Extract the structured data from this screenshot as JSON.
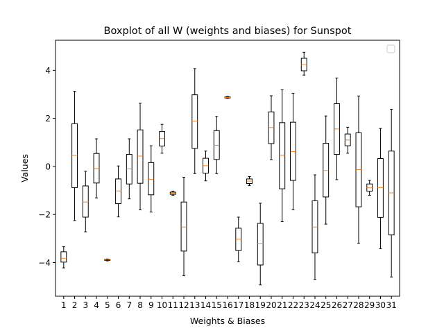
{
  "chart_data": {
    "type": "box",
    "title": "Boxplot of all W (weights and biases) for Sunspot",
    "xlabel": "Weights & Biases",
    "ylabel": "Values",
    "ylim": [
      -5.4,
      5.25
    ],
    "yticks": [
      -4,
      -2,
      0,
      2,
      4
    ],
    "legend": "top-right, empty",
    "grid": false,
    "colors": {
      "box": "#000000",
      "median": "#ff7f0e",
      "background": "#ffffff"
    },
    "categories": [
      "1",
      "2",
      "3",
      "4",
      "5",
      "6",
      "7",
      "8",
      "9",
      "10",
      "11",
      "12",
      "13",
      "14",
      "15",
      "16",
      "17",
      "18",
      "19",
      "20",
      "21",
      "22",
      "23",
      "24",
      "25",
      "26",
      "27",
      "28",
      "29",
      "30",
      "31"
    ],
    "boxes": [
      {
        "whislo": -4.22,
        "q1": -3.98,
        "med": -3.82,
        "q3": -3.55,
        "whishi": -3.34
      },
      {
        "whislo": -2.25,
        "q1": -0.88,
        "med": 0.46,
        "q3": 1.78,
        "whishi": 3.13
      },
      {
        "whislo": -2.72,
        "q1": -2.11,
        "med": -1.48,
        "q3": -0.81,
        "whishi": -0.2
      },
      {
        "whislo": -1.31,
        "q1": -0.69,
        "med": -0.09,
        "q3": 0.54,
        "whishi": 1.15
      },
      {
        "whislo": -3.93,
        "q1": -3.91,
        "med": -3.89,
        "q3": -3.87,
        "whishi": -3.85
      },
      {
        "whislo": -2.1,
        "q1": -1.55,
        "med": -1.02,
        "q3": -0.52,
        "whishi": 0.02
      },
      {
        "whislo": -1.35,
        "q1": -0.73,
        "med": -0.1,
        "q3": 0.5,
        "whishi": 1.15
      },
      {
        "whislo": -1.8,
        "q1": -0.7,
        "med": 0.43,
        "q3": 1.52,
        "whishi": 2.63
      },
      {
        "whislo": -1.9,
        "q1": -1.18,
        "med": -0.54,
        "q3": 0.16,
        "whishi": 0.86
      },
      {
        "whislo": 0.55,
        "q1": 0.85,
        "med": 1.16,
        "q3": 1.45,
        "whishi": 1.75
      },
      {
        "whislo": -1.2,
        "q1": -1.16,
        "med": -1.12,
        "q3": -1.07,
        "whishi": -1.03
      },
      {
        "whislo": -4.55,
        "q1": -3.52,
        "med": -2.52,
        "q3": -1.48,
        "whishi": -0.45
      },
      {
        "whislo": -0.3,
        "q1": 0.75,
        "med": 1.88,
        "q3": 2.98,
        "whishi": 4.07
      },
      {
        "whislo": -0.6,
        "q1": -0.28,
        "med": 0.03,
        "q3": 0.34,
        "whishi": 0.64
      },
      {
        "whislo": -0.3,
        "q1": 0.29,
        "med": 0.88,
        "q3": 1.49,
        "whishi": 2.08
      },
      {
        "whislo": 2.83,
        "q1": 2.85,
        "med": 2.87,
        "q3": 2.89,
        "whishi": 2.91
      },
      {
        "whislo": -3.97,
        "q1": -3.5,
        "med": -3.03,
        "q3": -2.57,
        "whishi": -2.11
      },
      {
        "whislo": -0.8,
        "q1": -0.71,
        "med": -0.61,
        "q3": -0.52,
        "whishi": -0.42
      },
      {
        "whislo": -4.93,
        "q1": -4.1,
        "med": -3.22,
        "q3": -2.37,
        "whishi": -1.53
      },
      {
        "whislo": 0.28,
        "q1": 0.95,
        "med": 1.62,
        "q3": 2.27,
        "whishi": 2.94
      },
      {
        "whislo": -2.3,
        "q1": -0.93,
        "med": 0.46,
        "q3": 1.82,
        "whishi": 3.19
      },
      {
        "whislo": -1.8,
        "q1": -0.58,
        "med": 0.62,
        "q3": 1.84,
        "whishi": 3.04
      },
      {
        "whislo": 3.8,
        "q1": 3.98,
        "med": 4.24,
        "q3": 4.5,
        "whishi": 4.75
      },
      {
        "whislo": -4.7,
        "q1": -3.6,
        "med": -2.52,
        "q3": -1.43,
        "whishi": -0.35
      },
      {
        "whislo": -2.4,
        "q1": -1.27,
        "med": -0.17,
        "q3": 0.96,
        "whishi": 2.1
      },
      {
        "whislo": -0.55,
        "q1": 0.5,
        "med": 1.56,
        "q3": 2.61,
        "whishi": 3.68
      },
      {
        "whislo": 0.55,
        "q1": 0.86,
        "med": 1.1,
        "q3": 1.35,
        "whishi": 1.63
      },
      {
        "whislo": -3.2,
        "q1": -1.68,
        "med": -0.13,
        "q3": 1.4,
        "whishi": 2.93
      },
      {
        "whislo": -1.2,
        "q1": -1.03,
        "med": -0.89,
        "q3": -0.73,
        "whishi": -0.58
      },
      {
        "whislo": -3.42,
        "q1": -2.12,
        "med": -0.88,
        "q3": 0.33,
        "whishi": 1.58
      },
      {
        "whislo": -4.6,
        "q1": -2.85,
        "med": -1.1,
        "q3": 0.64,
        "whishi": 2.38
      }
    ]
  }
}
